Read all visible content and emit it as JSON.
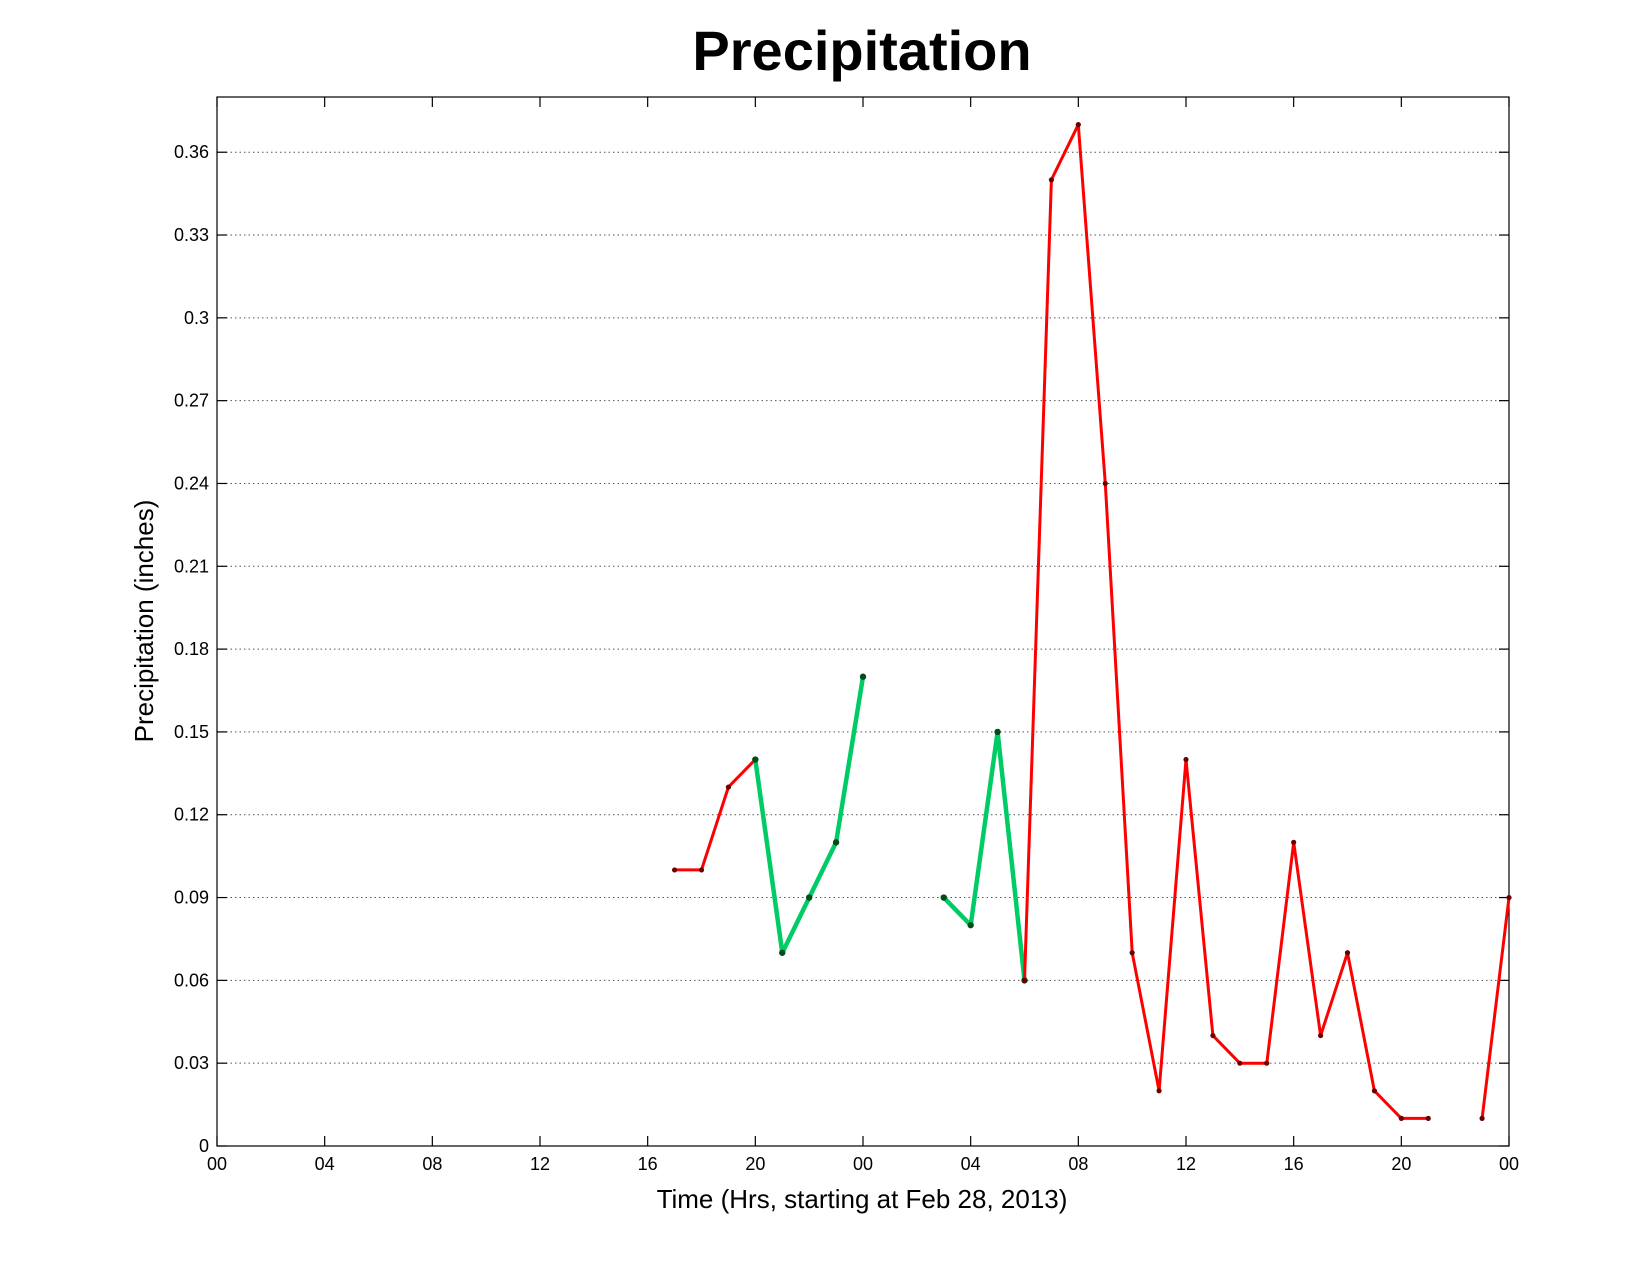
{
  "chart_data": {
    "type": "line",
    "title": "Precipitation",
    "xlabel": "Time (Hrs, starting at Feb 28, 2013)",
    "ylabel": "Precipitation (inches)",
    "xlim": [
      0,
      48
    ],
    "ylim": [
      0,
      0.38
    ],
    "x_ticks": [
      0,
      4,
      8,
      12,
      16,
      20,
      24,
      28,
      32,
      36,
      40,
      44,
      48
    ],
    "x_tick_labels": [
      "00",
      "04",
      "08",
      "12",
      "16",
      "20",
      "00",
      "04",
      "08",
      "12",
      "16",
      "20",
      "00"
    ],
    "y_ticks": [
      0,
      0.03,
      0.06,
      0.09,
      0.12,
      0.15,
      0.18,
      0.21,
      0.24,
      0.27,
      0.3,
      0.33,
      0.36
    ],
    "y_tick_labels": [
      "0",
      "0.03",
      "0.06",
      "0.09",
      "0.12",
      "0.15",
      "0.18",
      "0.21",
      "0.24",
      "0.27",
      "0.3",
      "0.33",
      "0.36"
    ],
    "grid": true,
    "legend": "none",
    "colors": {
      "red": "#ff0000",
      "green": "#00cc66",
      "marker": "#6b0000",
      "green_marker": "#004d1a"
    },
    "series": [
      {
        "color": "red",
        "x": [
          17,
          18,
          19,
          20
        ],
        "y": [
          0.1,
          0.1,
          0.13,
          0.14
        ]
      },
      {
        "color": "green",
        "x": [
          20,
          21,
          22,
          23,
          24
        ],
        "y": [
          0.14,
          0.07,
          0.09,
          0.11,
          0.17
        ]
      },
      {
        "color": "green",
        "x": [
          27,
          28,
          29,
          30
        ],
        "y": [
          0.09,
          0.08,
          0.15,
          0.06
        ]
      },
      {
        "color": "red",
        "x": [
          30,
          31,
          32,
          33,
          34,
          35,
          36,
          37,
          38,
          39,
          40,
          41,
          42,
          43,
          44,
          45
        ],
        "y": [
          0.06,
          0.35,
          0.37,
          0.24,
          0.07,
          0.02,
          0.14,
          0.04,
          0.03,
          0.03,
          0.11,
          0.04,
          0.07,
          0.02,
          0.01,
          0.01
        ]
      },
      {
        "color": "red",
        "x": [
          47,
          48
        ],
        "y": [
          0.01,
          0.09
        ]
      }
    ]
  }
}
